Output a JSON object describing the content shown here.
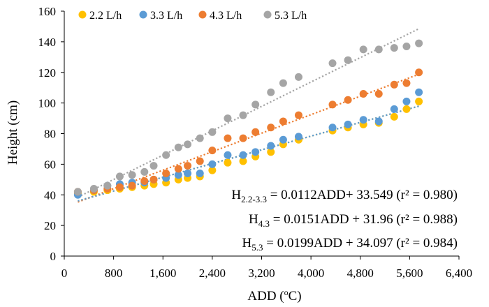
{
  "chart_data": {
    "type": "scatter",
    "xlabel_main": "ADD (",
    "xlabel_sup": "o",
    "xlabel_unit": "C)",
    "ylabel": "Height (cm)",
    "xlim": [
      0,
      6400
    ],
    "ylim": [
      0,
      160
    ],
    "xticks": [
      0,
      800,
      1600,
      2400,
      3200,
      4000,
      4800,
      5600,
      6400
    ],
    "xtick_labels": [
      "0",
      "800",
      "1,600",
      "2,400",
      "3,200",
      "4,000",
      "4,800",
      "5,600",
      "6,400"
    ],
    "yticks": [
      0,
      20,
      40,
      60,
      80,
      100,
      120,
      140,
      160
    ],
    "ytick_labels": [
      "0",
      "20",
      "40",
      "60",
      "80",
      "100",
      "120",
      "140",
      "160"
    ],
    "grid": false,
    "legend_position": "top-left",
    "series": [
      {
        "name": "2.2 L/h",
        "color": "#FFC000",
        "x": [
          220,
          480,
          700,
          900,
          1100,
          1300,
          1450,
          1650,
          1850,
          2000,
          2200,
          2400,
          2650,
          2900,
          3100,
          3350,
          3550,
          3800,
          4350,
          4600,
          4850,
          5100,
          5350,
          5550,
          5750
        ],
        "y": [
          41,
          42,
          43,
          44,
          45,
          46,
          47,
          48,
          50,
          51,
          52,
          56,
          61,
          62,
          65,
          68,
          73,
          76,
          82,
          84,
          86,
          87,
          91,
          96,
          101
        ],
        "trend": {
          "slope": 0.0112,
          "intercept": 33.549
        }
      },
      {
        "name": "3.3 L/h",
        "color": "#5B9BD5",
        "x": [
          220,
          480,
          700,
          900,
          1100,
          1300,
          1450,
          1650,
          1850,
          2000,
          2200,
          2400,
          2650,
          2900,
          3100,
          3350,
          3550,
          3800,
          4350,
          4600,
          4850,
          5100,
          5350,
          5550,
          5750
        ],
        "y": [
          40,
          43,
          46,
          47,
          48,
          48,
          50,
          51,
          53,
          54,
          54,
          60,
          66,
          66,
          68,
          72,
          76,
          78,
          84,
          86,
          89,
          88,
          96,
          101,
          107
        ],
        "trend": {
          "slope": 0.0112,
          "intercept": 33.549
        }
      },
      {
        "name": "4.3 L/h",
        "color": "#ED7D31",
        "x": [
          220,
          480,
          700,
          900,
          1100,
          1300,
          1450,
          1650,
          1850,
          2000,
          2200,
          2400,
          2650,
          2900,
          3100,
          3350,
          3550,
          3800,
          4350,
          4600,
          4850,
          5100,
          5350,
          5550,
          5750
        ],
        "y": [
          42,
          43,
          44,
          45,
          46,
          49,
          50,
          54,
          57,
          59,
          62,
          69,
          77,
          77,
          81,
          84,
          88,
          92,
          99,
          102,
          106,
          106,
          112,
          113,
          120
        ],
        "trend": {
          "slope": 0.0151,
          "intercept": 31.96
        }
      },
      {
        "name": "5.3 L/h",
        "color": "#A5A5A5",
        "x": [
          220,
          480,
          700,
          900,
          1100,
          1300,
          1450,
          1650,
          1850,
          2000,
          2200,
          2400,
          2650,
          2900,
          3100,
          3350,
          3550,
          3800,
          4350,
          4600,
          4850,
          5100,
          5350,
          5550,
          5750
        ],
        "y": [
          42,
          44,
          46,
          52,
          53,
          55,
          59,
          66,
          71,
          73,
          77,
          81,
          90,
          92,
          99,
          107,
          113,
          117,
          126,
          128,
          135,
          135,
          136,
          137,
          139
        ],
        "trend": {
          "slope": 0.0199,
          "intercept": 34.097
        }
      }
    ],
    "annotations": [
      {
        "main": "H",
        "sub": "2.2-3.3",
        "rest": " = 0.0112ADD+ 33.549  (r² = 0.980)"
      },
      {
        "main": "H",
        "sub": "4.3",
        "rest": " = 0.0151ADD + 31.96  (r² = 0.988)"
      },
      {
        "main": "H",
        "sub": "5.3",
        "rest": " = 0.0199ADD + 34.097  (r² = 0.984)"
      }
    ]
  }
}
